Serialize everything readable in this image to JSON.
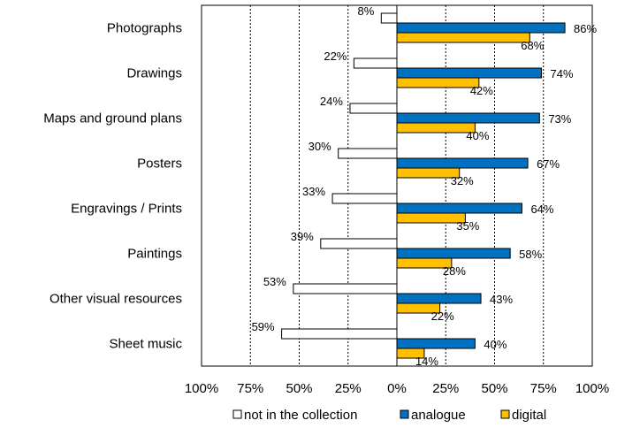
{
  "chart_data": {
    "type": "bar",
    "orientation": "horizontal",
    "categories": [
      "Photographs",
      "Drawings",
      "Maps and ground plans",
      "Posters",
      "Engravings / Prints",
      "Paintings",
      "Other visual resources",
      "Sheet music"
    ],
    "series": [
      {
        "name": "not in the collection",
        "direction": "negative",
        "color": "#ffffff",
        "values": [
          8,
          22,
          24,
          30,
          33,
          39,
          53,
          59
        ]
      },
      {
        "name": "analogue",
        "direction": "positive",
        "color": "#0070c0",
        "values": [
          86,
          74,
          73,
          67,
          64,
          58,
          43,
          40
        ]
      },
      {
        "name": "digital",
        "direction": "positive",
        "color": "#ffc000",
        "values": [
          68,
          42,
          40,
          32,
          35,
          28,
          22,
          14
        ]
      }
    ],
    "value_suffix": "%",
    "xlim": [
      -100,
      100
    ],
    "x_ticks": [
      -100,
      -75,
      -50,
      -25,
      0,
      25,
      50,
      75,
      100
    ],
    "x_tick_labels": [
      "100%",
      "75%",
      "50%",
      "25%",
      "0%",
      "25%",
      "50%",
      "75%",
      "100%"
    ],
    "grid": "vertical dashed",
    "legend_position": "bottom"
  }
}
